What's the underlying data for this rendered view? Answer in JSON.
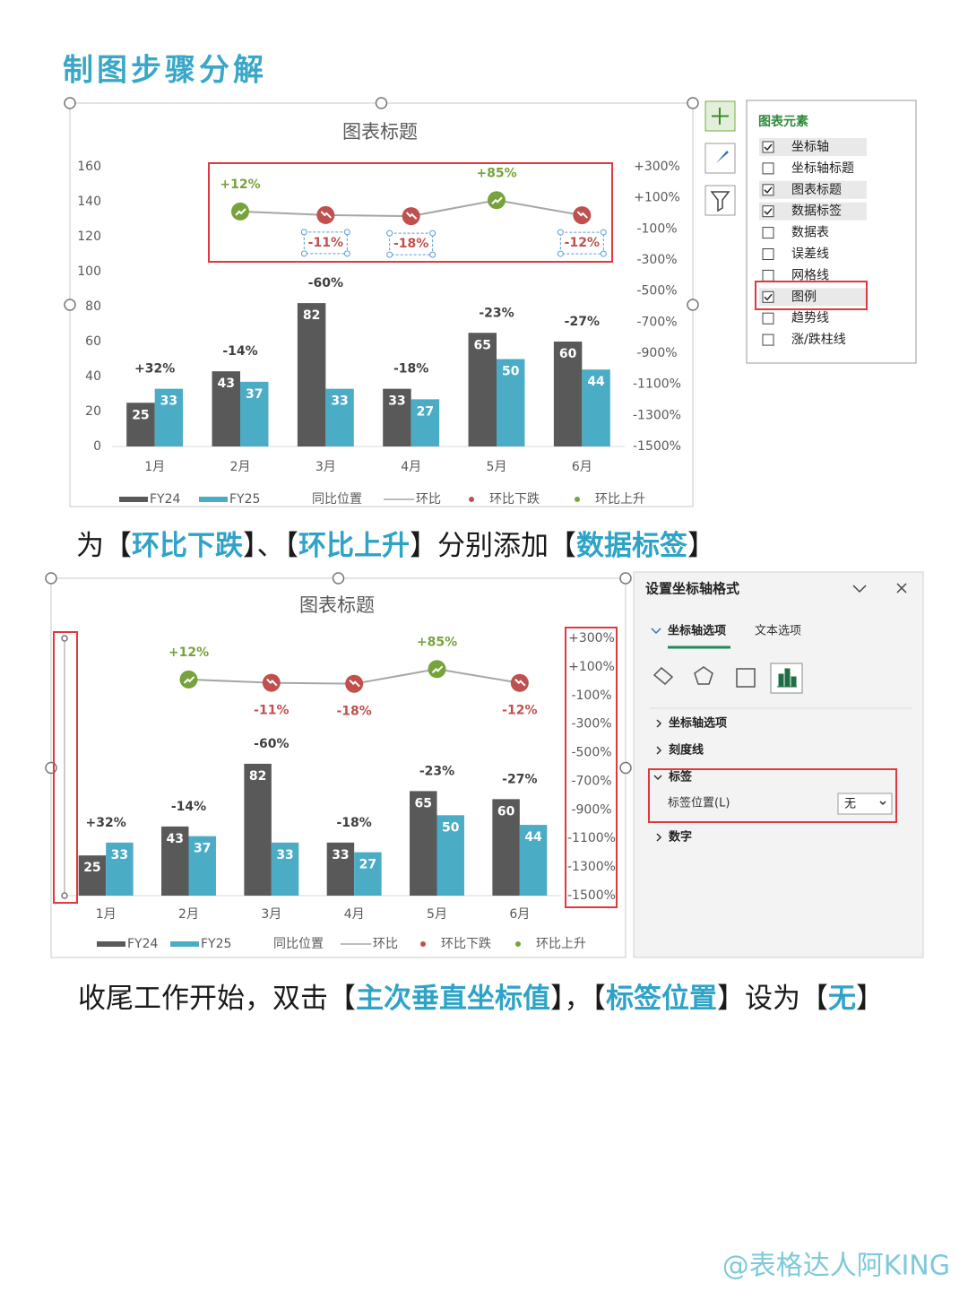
{
  "header": {
    "title": "制图步骤分解"
  },
  "captions": [
    [
      "为【",
      "环比下跌",
      "】、【",
      "环比上升",
      "】分别添加【",
      "数据标签",
      "】"
    ],
    [
      "收尾工作开始，双击【",
      "主次垂直坐标值",
      "】，【",
      "标签位置",
      "】设为【",
      "无",
      "】"
    ]
  ],
  "chart_elements": {
    "title": "图表元素",
    "items": [
      {
        "label": "坐标轴",
        "checked": true
      },
      {
        "label": "坐标轴标题",
        "checked": false
      },
      {
        "label": "图表标题",
        "checked": true
      },
      {
        "label": "数据标签",
        "checked": true
      },
      {
        "label": "数据表",
        "checked": false
      },
      {
        "label": "误差线",
        "checked": false
      },
      {
        "label": "网格线",
        "checked": false
      },
      {
        "label": "图例",
        "checked": true
      },
      {
        "label": "趋势线",
        "checked": false
      },
      {
        "label": "涨/跌柱线",
        "checked": false
      }
    ]
  },
  "format_pane": {
    "title": "设置坐标轴格式",
    "tabs": [
      "坐标轴选项",
      "文本选项"
    ],
    "sections": [
      "坐标轴选项",
      "刻度线",
      "标签",
      "数字"
    ],
    "field_label": "标签位置(L)",
    "field_value": "无"
  },
  "watermark": "@表格达人阿KING",
  "chart_data": [
    {
      "type": "bar",
      "title": "图表标题",
      "categories": [
        "1月",
        "2月",
        "3月",
        "4月",
        "5月",
        "6月"
      ],
      "ylim": [
        0,
        160
      ],
      "yticks": [
        0,
        20,
        40,
        60,
        80,
        100,
        120,
        140,
        160
      ],
      "y2lim": [
        -1500,
        300
      ],
      "y2ticks": [
        {
          "value": 300,
          "label": "+300%"
        },
        {
          "value": 100,
          "label": "+100%"
        },
        {
          "value": -100,
          "label": "-100%"
        },
        {
          "value": -300,
          "label": "-300%"
        },
        {
          "value": -500,
          "label": "-500%"
        },
        {
          "value": -700,
          "label": "-700%"
        },
        {
          "value": -900,
          "label": "-900%"
        },
        {
          "value": -1100,
          "label": "-1100%"
        },
        {
          "value": -1300,
          "label": "-1300%"
        },
        {
          "value": -1500,
          "label": "-1500%"
        }
      ],
      "series": [
        {
          "name": "FY24",
          "type": "bar",
          "color": "#595959",
          "values": [
            25,
            43,
            82,
            33,
            65,
            60
          ]
        },
        {
          "name": "FY25",
          "type": "bar",
          "color": "#4bacc6",
          "values": [
            33,
            37,
            33,
            27,
            50,
            44
          ]
        },
        {
          "name": "同比位置",
          "type": "label",
          "values": [
            32,
            -14,
            -60,
            -18,
            -23,
            -27
          ],
          "value_labels": [
            "+32%",
            "-14%",
            "-60%",
            "-18%",
            "-23%",
            "-27%"
          ]
        },
        {
          "name": "环比",
          "type": "line",
          "axis": "y2",
          "color": "#a6a6a6",
          "values": [
            null,
            12,
            -11,
            -18,
            85,
            -12
          ]
        },
        {
          "name": "环比下跌",
          "type": "scatter",
          "axis": "y2",
          "color": "#c0504d",
          "values": [
            null,
            null,
            -11,
            -18,
            null,
            -12
          ],
          "value_labels": [
            null,
            null,
            "-11%",
            "-18%",
            null,
            "-12%"
          ]
        },
        {
          "name": "环比上升",
          "type": "scatter",
          "axis": "y2",
          "color": "#77a33c",
          "values": [
            null,
            12,
            null,
            null,
            85,
            null
          ],
          "value_labels": [
            null,
            "+12%",
            null,
            null,
            "+85%",
            null
          ]
        }
      ]
    },
    {
      "type": "bar",
      "title": "图表标题",
      "categories": [
        "1月",
        "2月",
        "3月",
        "4月",
        "5月",
        "6月"
      ],
      "ylim": [
        0,
        160
      ],
      "y2lim": [
        -1500,
        300
      ],
      "y2ticks": [
        {
          "value": 300,
          "label": "+300%"
        },
        {
          "value": 100,
          "label": "+100%"
        },
        {
          "value": -100,
          "label": "-100%"
        },
        {
          "value": -300,
          "label": "-300%"
        },
        {
          "value": -500,
          "label": "-500%"
        },
        {
          "value": -700,
          "label": "-700%"
        },
        {
          "value": -900,
          "label": "-900%"
        },
        {
          "value": -1100,
          "label": "-1100%"
        },
        {
          "value": -1300,
          "label": "-1300%"
        },
        {
          "value": -1500,
          "label": "-1500%"
        }
      ],
      "series": [
        {
          "name": "FY24",
          "type": "bar",
          "color": "#595959",
          "values": [
            25,
            43,
            82,
            33,
            65,
            60
          ]
        },
        {
          "name": "FY25",
          "type": "bar",
          "color": "#4bacc6",
          "values": [
            33,
            37,
            33,
            27,
            50,
            44
          ]
        },
        {
          "name": "同比位置",
          "type": "label",
          "values": [
            32,
            -14,
            -60,
            -18,
            -23,
            -27
          ],
          "value_labels": [
            "+32%",
            "-14%",
            "-60%",
            "-18%",
            "-23%",
            "-27%"
          ]
        },
        {
          "name": "环比",
          "type": "line",
          "axis": "y2",
          "color": "#a6a6a6",
          "values": [
            null,
            12,
            -11,
            -18,
            85,
            -12
          ]
        },
        {
          "name": "环比下跌",
          "type": "scatter",
          "axis": "y2",
          "color": "#c0504d",
          "values": [
            null,
            null,
            -11,
            -18,
            null,
            -12
          ],
          "value_labels": [
            null,
            null,
            "-11%",
            "-18%",
            null,
            "-12%"
          ]
        },
        {
          "name": "环比上升",
          "type": "scatter",
          "axis": "y2",
          "color": "#77a33c",
          "values": [
            null,
            12,
            null,
            null,
            85,
            null
          ],
          "value_labels": [
            null,
            "+12%",
            null,
            null,
            "+85%",
            null
          ]
        }
      ]
    }
  ]
}
